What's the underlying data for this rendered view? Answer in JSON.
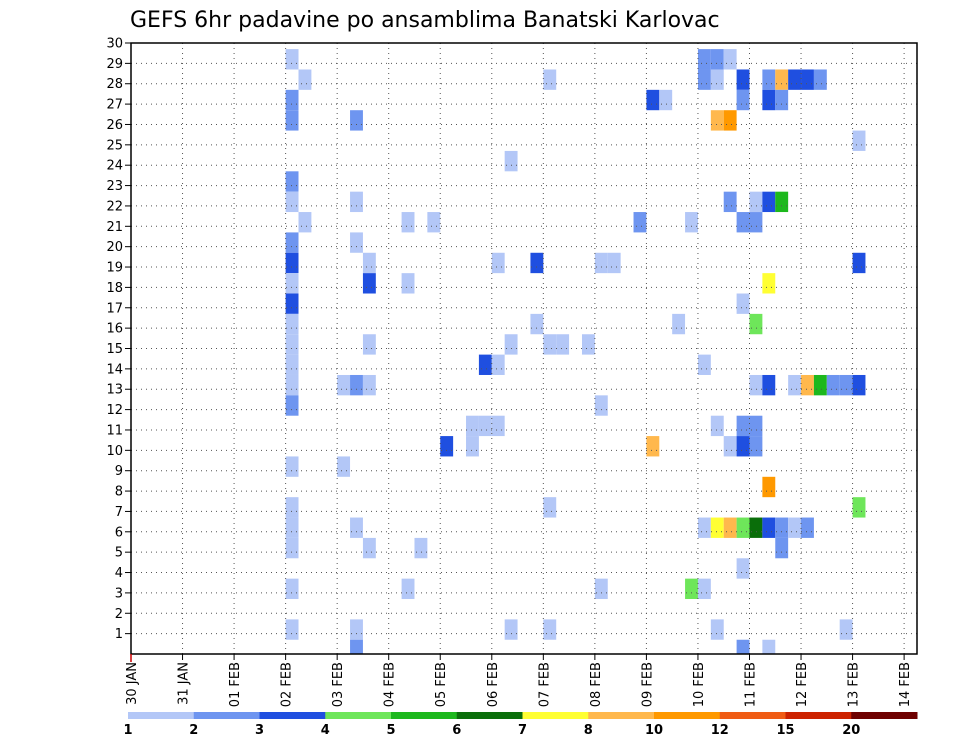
{
  "chart_data": {
    "type": "heatmap",
    "title": "GEFS 6hr padavine po ansamblima Banatski Karlovac",
    "xlabel": "",
    "ylabel": "",
    "x_tick_labels": [
      "30 JAN",
      "31 JAN",
      "01 FEB",
      "02 FEB",
      "03 FEB",
      "04 FEB",
      "05 FEB",
      "06 FEB",
      "07 FEB",
      "08 FEB",
      "09 FEB",
      "10 FEB",
      "11 FEB",
      "12 FEB",
      "13 FEB",
      "14 FEB"
    ],
    "y_tick_labels": [
      "1",
      "2",
      "3",
      "4",
      "5",
      "6",
      "7",
      "8",
      "9",
      "10",
      "11",
      "12",
      "13",
      "14",
      "15",
      "16",
      "17",
      "18",
      "19",
      "20",
      "21",
      "22",
      "23",
      "24",
      "25",
      "26",
      "27",
      "28",
      "29",
      "30"
    ],
    "xlim_days": [
      0,
      15.25
    ],
    "ylim": [
      0,
      30
    ],
    "grid": true,
    "colorbar": {
      "labels": [
        "1",
        "2",
        "3",
        "4",
        "5",
        "6",
        "7",
        "8",
        "10",
        "12",
        "15",
        "20"
      ],
      "colors": [
        "#b3c7f7",
        "#6e95f0",
        "#1f4fe0",
        "#6ee65a",
        "#1db81d",
        "#0a6e0a",
        "#ffff33",
        "#ffb84d",
        "#ff9900",
        "#f05c14",
        "#cc2200",
        "#6e0000"
      ]
    },
    "cells": [
      [
        3,
        29,
        1
      ],
      [
        3.25,
        28,
        1
      ],
      [
        3,
        27,
        2
      ],
      [
        3,
        26,
        2
      ],
      [
        3,
        23,
        2
      ],
      [
        3,
        22,
        1
      ],
      [
        3.25,
        21,
        1
      ],
      [
        3,
        20,
        2
      ],
      [
        3,
        19,
        3
      ],
      [
        3,
        18,
        1
      ],
      [
        3,
        17,
        3
      ],
      [
        3,
        16,
        1
      ],
      [
        3,
        15,
        1
      ],
      [
        3,
        14,
        1
      ],
      [
        3,
        13,
        1
      ],
      [
        3,
        12,
        2
      ],
      [
        3,
        9,
        1
      ],
      [
        3,
        7,
        1
      ],
      [
        3,
        6,
        1
      ],
      [
        3,
        5,
        1
      ],
      [
        3,
        3,
        1
      ],
      [
        3,
        1,
        1
      ],
      [
        4.25,
        26,
        2
      ],
      [
        4.25,
        22,
        1
      ],
      [
        4.25,
        20,
        1
      ],
      [
        4.5,
        19,
        1
      ],
      [
        4.5,
        18,
        3
      ],
      [
        4.5,
        15,
        1
      ],
      [
        4,
        13,
        1
      ],
      [
        4.25,
        13,
        2
      ],
      [
        4.5,
        13,
        1
      ],
      [
        4,
        9,
        1
      ],
      [
        4.25,
        6,
        1
      ],
      [
        4.5,
        5,
        1
      ],
      [
        4.25,
        1,
        1
      ],
      [
        4.25,
        0,
        2
      ],
      [
        5.25,
        21,
        1
      ],
      [
        5.25,
        18,
        1
      ],
      [
        5.75,
        21,
        1
      ],
      [
        5.25,
        3,
        1
      ],
      [
        5.5,
        5,
        1
      ],
      [
        6,
        10,
        3
      ],
      [
        6.5,
        10,
        1
      ],
      [
        7.25,
        24,
        1
      ],
      [
        7,
        19,
        1
      ],
      [
        6.75,
        14,
        3
      ],
      [
        7,
        14,
        1
      ],
      [
        7.25,
        15,
        1
      ],
      [
        6.5,
        11,
        1
      ],
      [
        6.75,
        11,
        1
      ],
      [
        7,
        11,
        1
      ],
      [
        7.25,
        1,
        1
      ],
      [
        8,
        28,
        1
      ],
      [
        7.75,
        19,
        3
      ],
      [
        7.75,
        16,
        1
      ],
      [
        8,
        15,
        1
      ],
      [
        8.25,
        15,
        1
      ],
      [
        8,
        7,
        1
      ],
      [
        8,
        1,
        1
      ],
      [
        8.75,
        15,
        1
      ],
      [
        9,
        19,
        1
      ],
      [
        9.25,
        19,
        1
      ],
      [
        9,
        12,
        1
      ],
      [
        9,
        3,
        1
      ],
      [
        9.75,
        21,
        2
      ],
      [
        10,
        27,
        3
      ],
      [
        10.25,
        27,
        1
      ],
      [
        10,
        10,
        8
      ],
      [
        10.5,
        16,
        1
      ],
      [
        10.75,
        21,
        1
      ],
      [
        11,
        14,
        1
      ],
      [
        10.75,
        3,
        4
      ],
      [
        11,
        3,
        1
      ],
      [
        11,
        29,
        2
      ],
      [
        11.25,
        29,
        2
      ],
      [
        11.5,
        29,
        1
      ],
      [
        11,
        28,
        2
      ],
      [
        11.25,
        28,
        1
      ],
      [
        11.75,
        28,
        3
      ],
      [
        11.75,
        27,
        2
      ],
      [
        11.25,
        26,
        8
      ],
      [
        11.5,
        26,
        9
      ],
      [
        11.5,
        22,
        2
      ],
      [
        11.75,
        21,
        2
      ],
      [
        12,
        21,
        2
      ],
      [
        11.75,
        17,
        1
      ],
      [
        12,
        16,
        4
      ],
      [
        11.25,
        11,
        1
      ],
      [
        11.75,
        11,
        2
      ],
      [
        12,
        11,
        2
      ],
      [
        11.5,
        10,
        1
      ],
      [
        11.75,
        10,
        3
      ],
      [
        12,
        10,
        2
      ],
      [
        11,
        6,
        1
      ],
      [
        11.25,
        6,
        7
      ],
      [
        11.5,
        6,
        8
      ],
      [
        11.75,
        6,
        4
      ],
      [
        12,
        6,
        6
      ],
      [
        11.75,
        4,
        1
      ],
      [
        11.25,
        1,
        1
      ],
      [
        11.75,
        0,
        2
      ],
      [
        12,
        22,
        1
      ],
      [
        12.25,
        28,
        2
      ],
      [
        12.5,
        28,
        8
      ],
      [
        12.75,
        28,
        3
      ],
      [
        13,
        28,
        3
      ],
      [
        13.25,
        28,
        2
      ],
      [
        12.25,
        27,
        3
      ],
      [
        12.5,
        27,
        2
      ],
      [
        12.25,
        22,
        3
      ],
      [
        12.5,
        22,
        5
      ],
      [
        12.25,
        18,
        7
      ],
      [
        12,
        13,
        1
      ],
      [
        12.25,
        13,
        3
      ],
      [
        12.75,
        13,
        1
      ],
      [
        13,
        13,
        8
      ],
      [
        13.25,
        13,
        5
      ],
      [
        13.5,
        13,
        2
      ],
      [
        13.75,
        13,
        2
      ],
      [
        12.25,
        8,
        9
      ],
      [
        12.25,
        6,
        3
      ],
      [
        12.5,
        6,
        2
      ],
      [
        12.75,
        6,
        1
      ],
      [
        13,
        6,
        2
      ],
      [
        12.5,
        5,
        2
      ],
      [
        12.25,
        0,
        1
      ],
      [
        14,
        25,
        1
      ],
      [
        14,
        19,
        3
      ],
      [
        14,
        13,
        3
      ],
      [
        14,
        7,
        4
      ],
      [
        13.75,
        1,
        1
      ]
    ]
  }
}
